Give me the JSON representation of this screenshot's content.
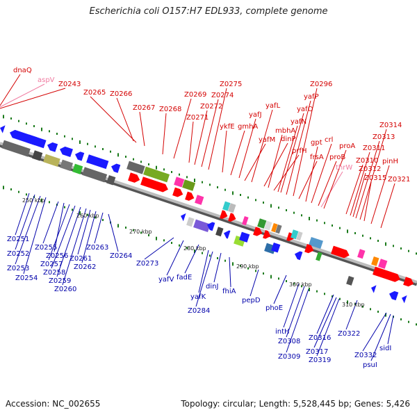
{
  "title": "Escherichia coli O157:H7 EDL933, complete genome",
  "footer": {
    "accession": "Accession: NC_002655",
    "summary": "Topology: circular; Length: 5,528,445 bp; Genes: 5,426"
  },
  "colors": {
    "top_label": "#d40000",
    "top_label_faded": "#f07aa0",
    "bottom_label": "#0000aa",
    "axis_gray": "#8a8a8a",
    "tick_green": "#1a7a1a",
    "forward_gene": "#ff0000",
    "reverse_gene": "#1a1aff"
  },
  "scale_labels": [
    "250 kbp",
    "260 kbp",
    "270 kbp",
    "280 kbp",
    "290 kbp",
    "300 kbp",
    "310 kbp"
  ],
  "top_labels": [
    {
      "text": "dnaQ"
    },
    {
      "text": "aspV",
      "faded": true
    },
    {
      "text": "Z0243"
    },
    {
      "text": "Z0265"
    },
    {
      "text": "Z0266"
    },
    {
      "text": "Z0267"
    },
    {
      "text": "Z0268"
    },
    {
      "text": "Z0269"
    },
    {
      "text": "Z0271"
    },
    {
      "text": "Z0272"
    },
    {
      "text": "Z0274"
    },
    {
      "text": "Z0275"
    },
    {
      "text": "ykfE"
    },
    {
      "text": "gmhA"
    },
    {
      "text": "yafJ"
    },
    {
      "text": "yafM"
    },
    {
      "text": "yafL"
    },
    {
      "text": "dinP"
    },
    {
      "text": "mbhA"
    },
    {
      "text": "prfH"
    },
    {
      "text": "yafN"
    },
    {
      "text": "yafO"
    },
    {
      "text": "yafP"
    },
    {
      "text": "Z0296"
    },
    {
      "text": "frsA"
    },
    {
      "text": "gpt"
    },
    {
      "text": "crl"
    },
    {
      "text": "proB"
    },
    {
      "text": "thrW",
      "faded": true
    },
    {
      "text": "proA"
    },
    {
      "text": "Z0310"
    },
    {
      "text": "Z0311"
    },
    {
      "text": "Z0312"
    },
    {
      "text": "Z0313"
    },
    {
      "text": "Z0314"
    },
    {
      "text": "Z0315"
    },
    {
      "text": "pinH"
    },
    {
      "text": "Z0321"
    }
  ],
  "bottom_labels": [
    {
      "text": "Z0251"
    },
    {
      "text": "Z0252"
    },
    {
      "text": "Z0253"
    },
    {
      "text": "Z0254"
    },
    {
      "text": "Z0255"
    },
    {
      "text": "Z0256"
    },
    {
      "text": "Z0257"
    },
    {
      "text": "Z0258"
    },
    {
      "text": "Z0259"
    },
    {
      "text": "Z0260"
    },
    {
      "text": "Z0261"
    },
    {
      "text": "Z0262"
    },
    {
      "text": "Z0263"
    },
    {
      "text": "Z0264"
    },
    {
      "text": "Z0273"
    },
    {
      "text": "yafV"
    },
    {
      "text": "fadE"
    },
    {
      "text": "yafK"
    },
    {
      "text": "Z0284"
    },
    {
      "text": "dinJ"
    },
    {
      "text": "fhiA"
    },
    {
      "text": "pepD"
    },
    {
      "text": "phoE"
    },
    {
      "text": "intH"
    },
    {
      "text": "Z0308"
    },
    {
      "text": "Z0309"
    },
    {
      "text": "Z0316"
    },
    {
      "text": "Z0317"
    },
    {
      "text": "Z0319"
    },
    {
      "text": "Z0322"
    },
    {
      "text": "Z0332"
    },
    {
      "text": "psuI"
    },
    {
      "text": "sidI"
    }
  ]
}
